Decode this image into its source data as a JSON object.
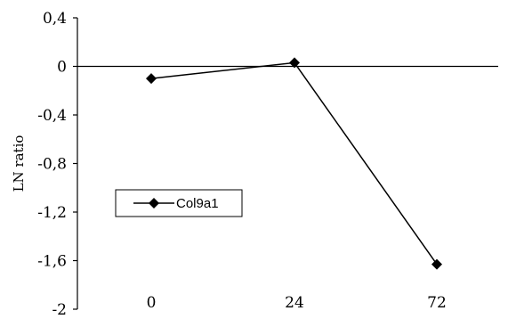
{
  "chart_data": {
    "type": "line",
    "title": "",
    "xlabel": "",
    "ylabel": "LN ratio",
    "categories": [
      "0",
      "24",
      "72"
    ],
    "ylim": [
      -2,
      0.4
    ],
    "yticks": [
      "0,4",
      "0",
      "-0,4",
      "-0,8",
      "-1,2",
      "-1,6",
      "-2"
    ],
    "ytick_values": [
      0.4,
      0,
      -0.4,
      -0.8,
      -1.2,
      -1.6,
      -2
    ],
    "grid": false,
    "legend_position": "left",
    "series": [
      {
        "name": "Col9a1",
        "values": [
          -0.1,
          0.03,
          -1.63
        ],
        "color": "#000000",
        "marker": "diamond"
      }
    ]
  }
}
